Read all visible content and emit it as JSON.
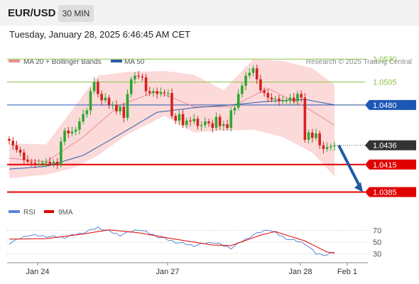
{
  "header": {
    "pair": "EUR/USD",
    "timeframe": "30 MIN"
  },
  "datetime": "Tuesday, January 28, 2025 6:46:45 AM CET",
  "copyright": "Research © 2025 Trading Central",
  "colors": {
    "resistance": "#8dc34a",
    "pivot": "#1c57b5",
    "current": "#333333",
    "support": "#e00000",
    "bands": "#fbd3d3",
    "ma20": "#ea8c8c",
    "ma50": "#2a5da8",
    "candle_up": "#2ea82e",
    "candle_down": "#d72020",
    "rsi": "#5b87d6",
    "rsi_ma": "#e00000",
    "arrow": "#1f5aa8"
  },
  "chart_data": [
    {
      "type": "candlestick",
      "legend": [
        {
          "name": "MA 20 + Bollinger Bands",
          "color": "#ea8c8c"
        },
        {
          "name": "MA 50",
          "color": "#2a5da8"
        }
      ],
      "ylim": [
        1.0373,
        1.0548
      ],
      "x_ticks": [
        "Jan 24",
        "Jan 27",
        "Jan 28",
        "Feb 1"
      ],
      "levels": [
        {
          "label": "1.0530",
          "value": 1.053,
          "kind": "resistance"
        },
        {
          "label": "1.0505",
          "value": 1.0505,
          "kind": "resistance"
        },
        {
          "label": "1.0480",
          "value": 1.048,
          "kind": "pivot"
        },
        {
          "label": "1.0436",
          "value": 1.0436,
          "kind": "current"
        },
        {
          "label": "1.0415",
          "value": 1.0415,
          "kind": "support"
        },
        {
          "label": "1.0385",
          "value": 1.0385,
          "kind": "support"
        }
      ],
      "forecast_arrow": {
        "from": 1.0436,
        "to": 1.0385
      },
      "price_anchors": [
        1.0441,
        1.0436,
        1.0431,
        1.0428,
        1.042,
        1.0418,
        1.0417,
        1.0416,
        1.0416,
        1.0417,
        1.0418,
        1.0416,
        1.0418,
        1.0415,
        1.044,
        1.0452,
        1.0449,
        1.0451,
        1.0453,
        1.0462,
        1.047,
        1.0474,
        1.0495,
        1.0505,
        1.0492,
        1.0485,
        1.0488,
        1.048,
        1.048,
        1.0473,
        1.0478,
        1.0466,
        1.0492,
        1.0508,
        1.0512,
        1.0511,
        1.051,
        1.0495,
        1.0493,
        1.0495,
        1.0492,
        1.0494,
        1.0493,
        1.0493,
        1.0468,
        1.0463,
        1.047,
        1.0458,
        1.0463,
        1.0462,
        1.0465,
        1.0457,
        1.0458,
        1.0462,
        1.046,
        1.0455,
        1.0467,
        1.0457,
        1.0459,
        1.0455,
        1.0474,
        1.0477,
        1.0492,
        1.0501,
        1.0512,
        1.0515,
        1.052,
        1.0508,
        1.0496,
        1.0493,
        1.0488,
        1.0486,
        1.0487,
        1.0484,
        1.0485,
        1.0485,
        1.0488,
        1.0484,
        1.0492,
        1.0488,
        1.0442,
        1.045,
        1.0444,
        1.0449,
        1.0436,
        1.0432,
        1.0434,
        1.0435,
        1.0436
      ],
      "ma20_anchors": [
        [
          0,
          1.0422
        ],
        [
          10,
          1.0418
        ],
        [
          20,
          1.0445
        ],
        [
          30,
          1.048
        ],
        [
          40,
          1.0495
        ],
        [
          50,
          1.0478
        ],
        [
          60,
          1.0478
        ],
        [
          70,
          1.0498
        ],
        [
          80,
          1.0478
        ],
        [
          88,
          1.0458
        ]
      ],
      "ma50_anchors": [
        [
          0,
          1.041
        ],
        [
          10,
          1.0413
        ],
        [
          20,
          1.0425
        ],
        [
          30,
          1.0448
        ],
        [
          40,
          1.0472
        ],
        [
          50,
          1.0477
        ],
        [
          60,
          1.048
        ],
        [
          70,
          1.0484
        ],
        [
          80,
          1.0486
        ],
        [
          88,
          1.048
        ]
      ],
      "band_upper_anchors": [
        [
          0,
          1.0438
        ],
        [
          10,
          1.0437
        ],
        [
          18,
          1.048
        ],
        [
          24,
          1.0512
        ],
        [
          32,
          1.0516
        ],
        [
          42,
          1.0517
        ],
        [
          50,
          1.0513
        ],
        [
          58,
          1.0496
        ],
        [
          66,
          1.053
        ],
        [
          74,
          1.0528
        ],
        [
          82,
          1.052
        ],
        [
          88,
          1.0502
        ]
      ],
      "band_lower_anchors": [
        [
          0,
          1.04
        ],
        [
          10,
          1.0404
        ],
        [
          18,
          1.0412
        ],
        [
          24,
          1.0425
        ],
        [
          32,
          1.0448
        ],
        [
          42,
          1.0468
        ],
        [
          50,
          1.045
        ],
        [
          58,
          1.0452
        ],
        [
          66,
          1.0453
        ],
        [
          74,
          1.0445
        ],
        [
          82,
          1.0428
        ],
        [
          88,
          1.0402
        ]
      ]
    },
    {
      "type": "line",
      "legend": [
        {
          "name": "RSI",
          "color": "#5b87d6"
        },
        {
          "name": "9MA",
          "color": "#e00000"
        }
      ],
      "ylim": [
        22,
        78
      ],
      "ticks": [
        "70",
        "50",
        "30"
      ],
      "rsi_anchors": [
        [
          0,
          48
        ],
        [
          5,
          62
        ],
        [
          10,
          60
        ],
        [
          15,
          58
        ],
        [
          20,
          66
        ],
        [
          24,
          75
        ],
        [
          30,
          62
        ],
        [
          35,
          72
        ],
        [
          40,
          60
        ],
        [
          45,
          50
        ],
        [
          50,
          44
        ],
        [
          55,
          50
        ],
        [
          60,
          40
        ],
        [
          66,
          62
        ],
        [
          70,
          72
        ],
        [
          75,
          56
        ],
        [
          80,
          48
        ],
        [
          83,
          30
        ],
        [
          86,
          28
        ],
        [
          88,
          33
        ]
      ],
      "ma9_anchors": [
        [
          0,
          55
        ],
        [
          10,
          56
        ],
        [
          20,
          64
        ],
        [
          27,
          71
        ],
        [
          35,
          66
        ],
        [
          45,
          55
        ],
        [
          55,
          45
        ],
        [
          60,
          44
        ],
        [
          68,
          62
        ],
        [
          72,
          68
        ],
        [
          80,
          52
        ],
        [
          86,
          33
        ],
        [
          88,
          31
        ]
      ]
    }
  ]
}
